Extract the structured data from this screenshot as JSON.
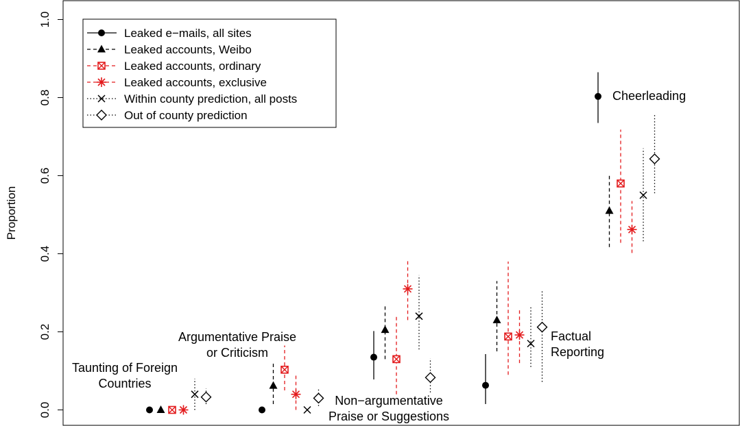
{
  "chart_data": {
    "type": "scatter",
    "ylabel": "Proportion",
    "ylim": [
      0,
      1
    ],
    "yticks": [
      "0.0",
      "0.2",
      "0.4",
      "0.6",
      "0.8",
      "1.0"
    ],
    "legend_position": "top-left",
    "legend": [
      {
        "label": "Leaked e−mails, all sites",
        "marker": "filled-circle",
        "line": "solid",
        "color": "#000000"
      },
      {
        "label": "Leaked accounts, Weibo",
        "marker": "filled-triangle",
        "line": "dashed",
        "color": "#000000"
      },
      {
        "label": "Leaked accounts, ordinary",
        "marker": "boxed-x",
        "line": "dashed",
        "color": "#e31a1c"
      },
      {
        "label": "Leaked accounts, exclusive",
        "marker": "asterisk",
        "line": "dashed",
        "color": "#e31a1c"
      },
      {
        "label": "Within county prediction, all posts",
        "marker": "x",
        "line": "dotted",
        "color": "#000000"
      },
      {
        "label": "Out of county prediction",
        "marker": "open-diamond",
        "line": "dotted",
        "color": "#000000"
      }
    ],
    "categories": [
      {
        "label": [
          "Taunting of Foreign",
          "Countries"
        ]
      },
      {
        "label": [
          "Argumentative Praise",
          "or Criticism"
        ]
      },
      {
        "label": [
          "Non−argumentative",
          "Praise or Suggestions"
        ]
      },
      {
        "label": [
          "Factual",
          "Reporting"
        ]
      },
      {
        "label": [
          "Cheerleading"
        ]
      }
    ],
    "series": [
      {
        "name": "Leaked e−mails, all sites",
        "values": [
          0.0,
          0.0,
          0.135,
          0.063,
          0.803
        ],
        "lower": [
          null,
          null,
          0.078,
          0.015,
          0.735
        ],
        "upper": [
          null,
          null,
          0.202,
          0.143,
          0.865
        ]
      },
      {
        "name": "Leaked accounts, Weibo",
        "values": [
          0.0,
          0.062,
          0.205,
          0.23,
          0.51
        ],
        "lower": [
          null,
          0.015,
          0.13,
          0.15,
          0.417
        ],
        "upper": [
          null,
          0.122,
          0.272,
          0.33,
          0.6
        ]
      },
      {
        "name": "Leaked accounts, ordinary",
        "values": [
          0.0,
          0.103,
          0.13,
          0.188,
          0.58
        ],
        "lower": [
          null,
          0.05,
          0.04,
          0.09,
          0.428
        ],
        "upper": [
          null,
          0.165,
          0.24,
          0.38,
          0.718
        ]
      },
      {
        "name": "Leaked accounts, exclusive",
        "values": [
          0.0,
          0.04,
          0.31,
          0.192,
          0.462
        ],
        "lower": [
          null,
          0.0,
          0.23,
          0.12,
          0.402
        ],
        "upper": [
          null,
          0.09,
          0.385,
          0.255,
          0.535
        ]
      },
      {
        "name": "Within county prediction, all posts",
        "values": [
          0.04,
          0.0,
          0.24,
          0.17,
          0.55
        ],
        "lower": [
          0.0,
          null,
          0.155,
          0.11,
          0.432
        ],
        "upper": [
          0.08,
          null,
          0.345,
          0.265,
          0.67
        ]
      },
      {
        "name": "Out of county prediction",
        "values": [
          0.033,
          0.03,
          0.083,
          0.212,
          0.643
        ],
        "lower": [
          0.015,
          0.01,
          0.045,
          0.072,
          0.555
        ],
        "upper": [
          0.055,
          0.055,
          0.132,
          0.305,
          0.758
        ]
      }
    ]
  }
}
